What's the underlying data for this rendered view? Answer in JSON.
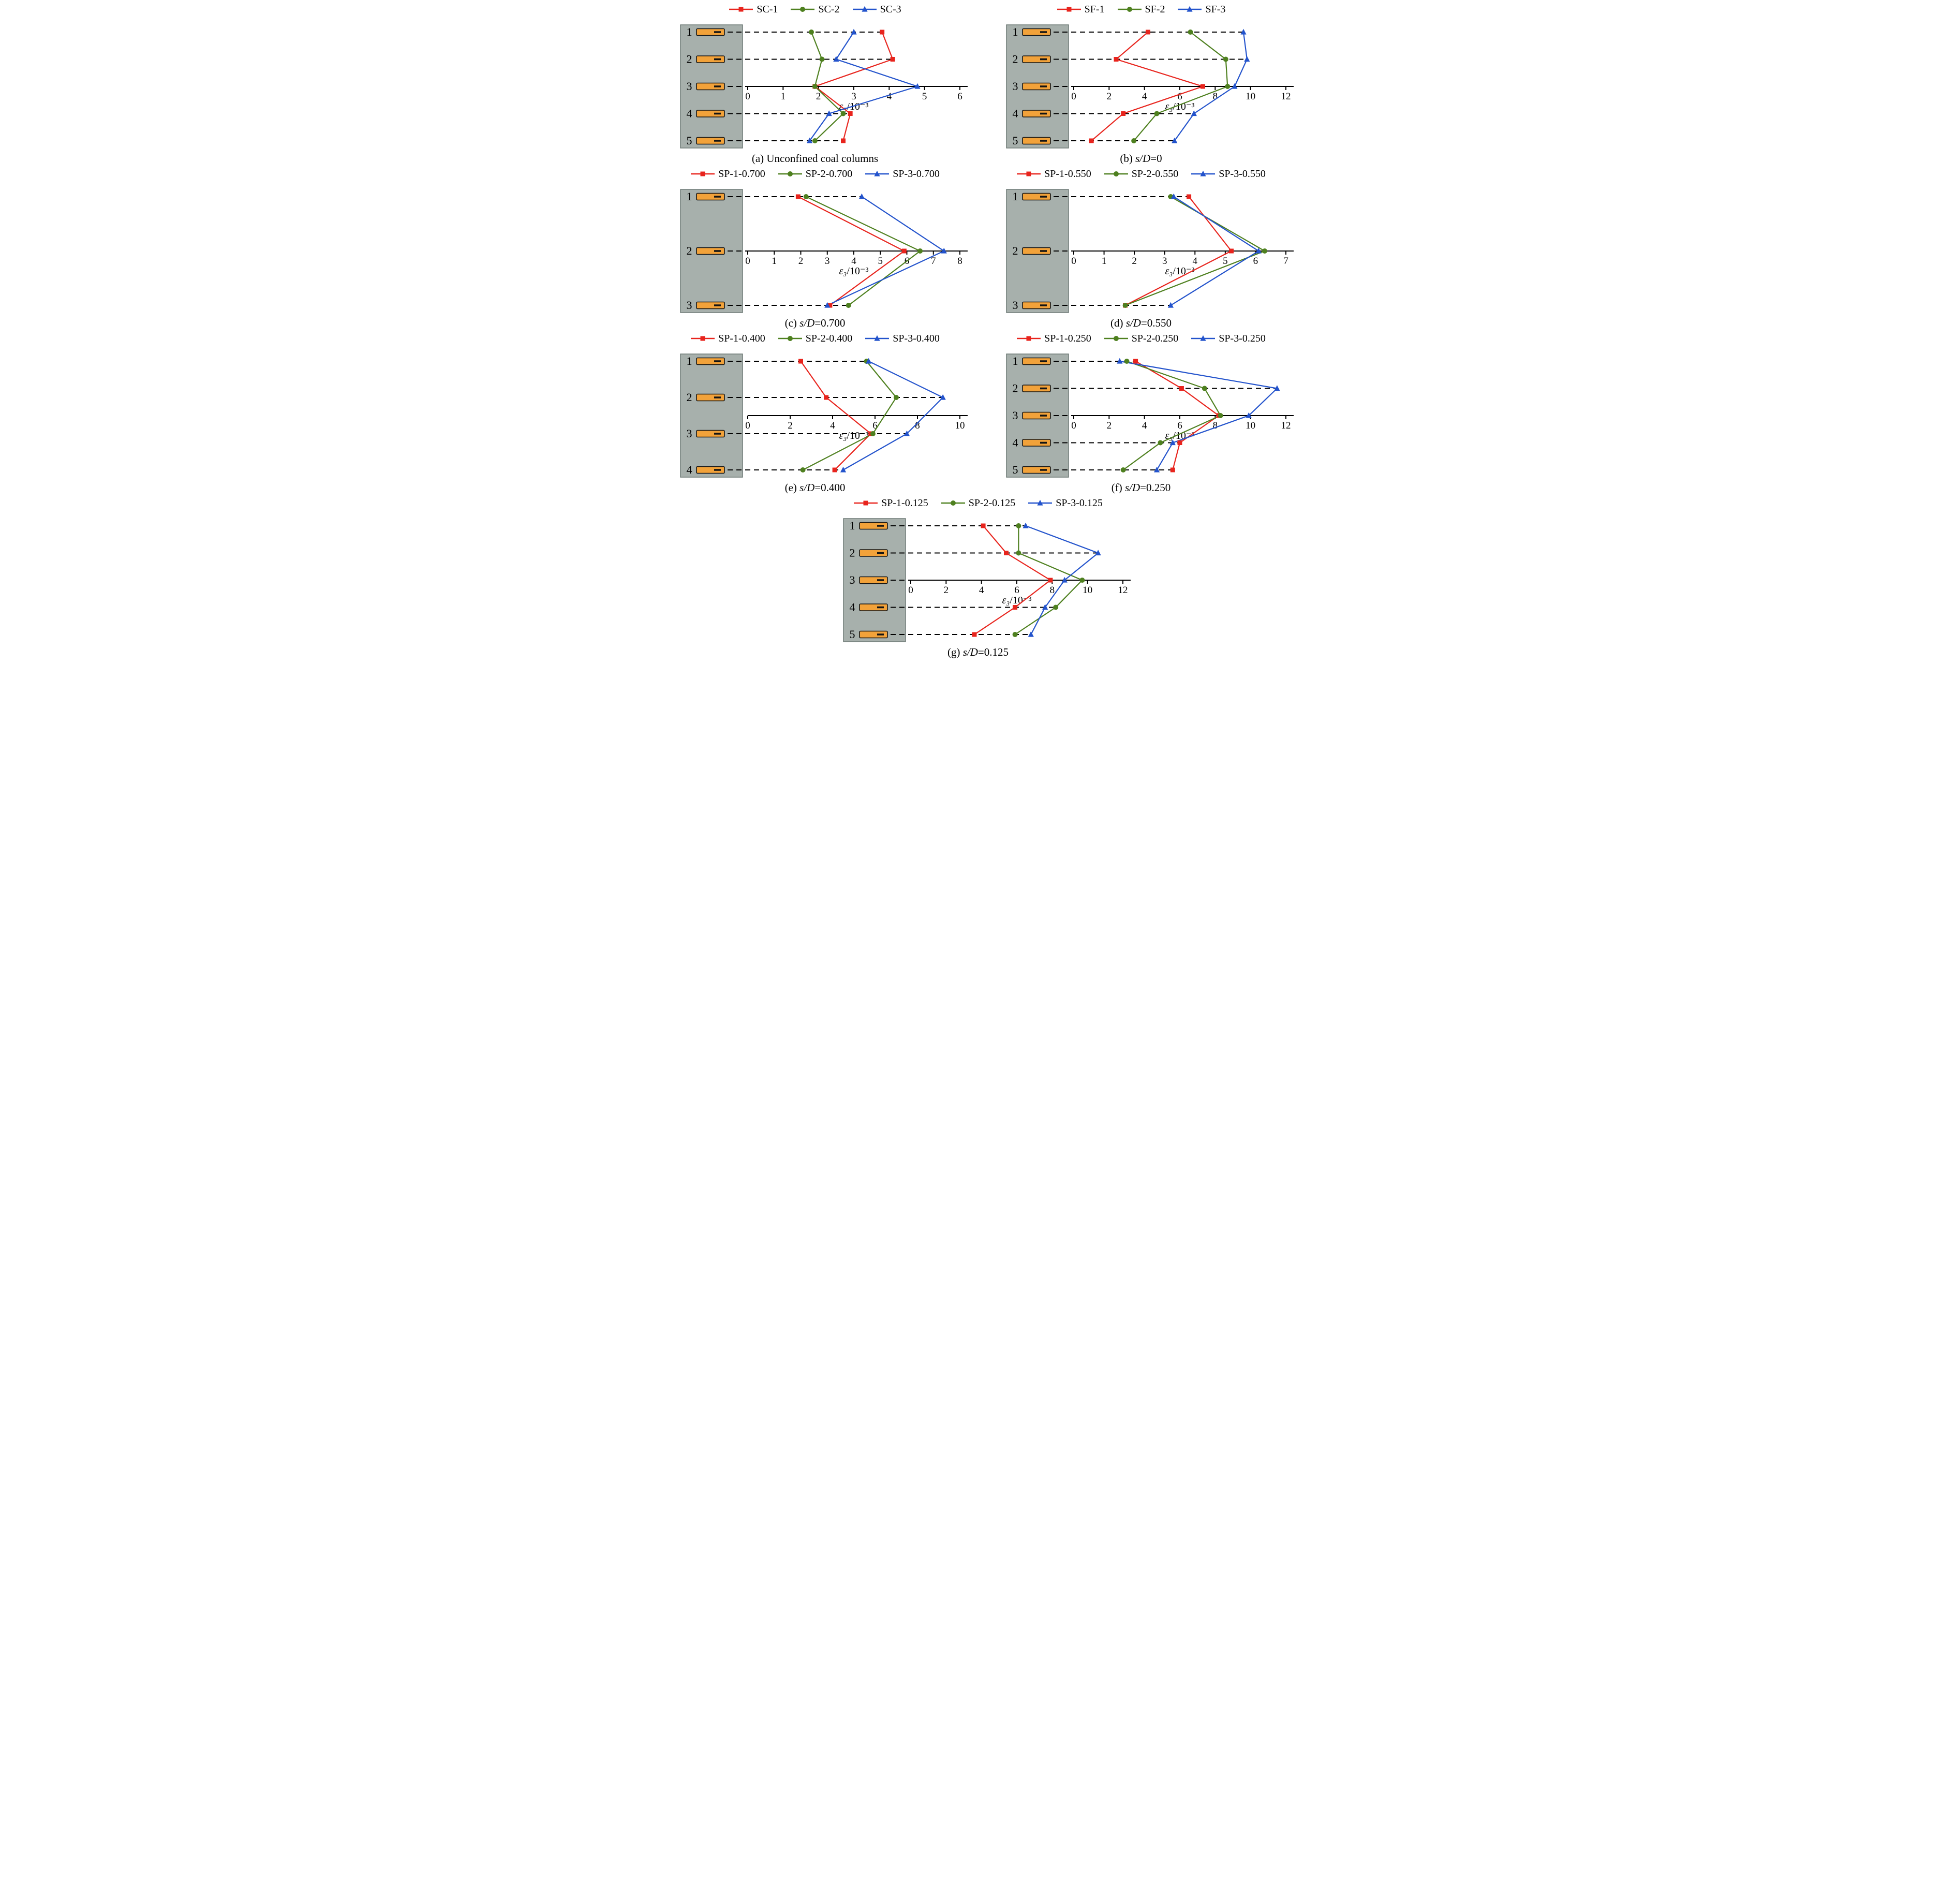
{
  "figure": {
    "colors": {
      "column_fill": "#a7b0ac",
      "column_stroke": "#6f7a76",
      "gauge_fill": "#f2a23a",
      "gauge_stroke": "#141414",
      "axis": "#000000",
      "red": "#e8241d",
      "green": "#4e801f",
      "blue": "#2353cc"
    }
  },
  "chart_data": [
    {
      "id": "a",
      "type": "line",
      "caption_parts": [
        {
          "text": "(a) Unconfined coal columns",
          "italic": false
        }
      ],
      "xlabel": "ε₃/10⁻³",
      "xlim": [
        0,
        6
      ],
      "xticks": [
        0,
        1,
        2,
        3,
        4,
        5,
        6
      ],
      "axis_level": 3,
      "categories": [
        "1",
        "2",
        "3",
        "4",
        "5"
      ],
      "series": [
        {
          "name": "SC-1",
          "marker": "square",
          "color": "#e8241d",
          "values": [
            3.8,
            4.1,
            1.9,
            2.9,
            2.7
          ]
        },
        {
          "name": "SC-2",
          "marker": "circle",
          "color": "#4e801f",
          "values": [
            1.8,
            2.1,
            1.9,
            2.7,
            1.9
          ]
        },
        {
          "name": "SC-3",
          "marker": "triangle",
          "color": "#2353cc",
          "values": [
            3.0,
            2.5,
            4.8,
            2.3,
            1.75
          ]
        }
      ]
    },
    {
      "id": "b",
      "type": "line",
      "caption_parts": [
        {
          "text": "(b) ",
          "italic": false
        },
        {
          "text": "s/D",
          "italic": true
        },
        {
          "text": "=0",
          "italic": false
        }
      ],
      "xlabel": "ε₃/10⁻³",
      "xlim": [
        0,
        12
      ],
      "xticks": [
        0,
        2,
        4,
        6,
        8,
        10,
        12
      ],
      "axis_level": 3,
      "categories": [
        "1",
        "2",
        "3",
        "4",
        "5"
      ],
      "series": [
        {
          "name": "SF-1",
          "marker": "square",
          "color": "#e8241d",
          "values": [
            4.2,
            2.4,
            7.3,
            2.8,
            1.0
          ]
        },
        {
          "name": "SF-2",
          "marker": "circle",
          "color": "#4e801f",
          "values": [
            6.6,
            8.6,
            8.7,
            4.7,
            3.4
          ]
        },
        {
          "name": "SF-3",
          "marker": "triangle",
          "color": "#2353cc",
          "values": [
            9.6,
            9.8,
            9.1,
            6.8,
            5.7
          ]
        }
      ]
    },
    {
      "id": "c",
      "type": "line",
      "caption_parts": [
        {
          "text": "(c) ",
          "italic": false
        },
        {
          "text": "s/D",
          "italic": true
        },
        {
          "text": "=0.700",
          "italic": false
        }
      ],
      "xlabel": "ε₃/10⁻³",
      "xlim": [
        0,
        8
      ],
      "xticks": [
        0,
        1,
        2,
        3,
        4,
        5,
        6,
        7,
        8
      ],
      "axis_level": 2,
      "categories": [
        "1",
        "2",
        "3"
      ],
      "series": [
        {
          "name": "SP-1-0.700",
          "marker": "square",
          "color": "#e8241d",
          "values": [
            1.9,
            5.9,
            3.1
          ]
        },
        {
          "name": "SP-2-0.700",
          "marker": "circle",
          "color": "#4e801f",
          "values": [
            2.2,
            6.5,
            3.8
          ]
        },
        {
          "name": "SP-3-0.700",
          "marker": "triangle",
          "color": "#2353cc",
          "values": [
            4.3,
            7.4,
            3.0
          ]
        }
      ]
    },
    {
      "id": "d",
      "type": "line",
      "caption_parts": [
        {
          "text": "(d) ",
          "italic": false
        },
        {
          "text": "s/D",
          "italic": true
        },
        {
          "text": "=0.550",
          "italic": false
        }
      ],
      "xlabel": "ε₃/10⁻³",
      "xlim": [
        0,
        7
      ],
      "xticks": [
        0,
        1,
        2,
        3,
        4,
        5,
        6,
        7
      ],
      "axis_level": 2,
      "categories": [
        "1",
        "2",
        "3"
      ],
      "series": [
        {
          "name": "SP-1-0.550",
          "marker": "square",
          "color": "#e8241d",
          "values": [
            3.8,
            5.2,
            1.7
          ]
        },
        {
          "name": "SP-2-0.550",
          "marker": "circle",
          "color": "#4e801f",
          "values": [
            3.2,
            6.3,
            1.7
          ]
        },
        {
          "name": "SP-3-0.550",
          "marker": "triangle",
          "color": "#2353cc",
          "values": [
            3.3,
            6.1,
            3.2
          ]
        }
      ]
    },
    {
      "id": "e",
      "type": "line",
      "caption_parts": [
        {
          "text": "(e) ",
          "italic": false
        },
        {
          "text": "s/D",
          "italic": true
        },
        {
          "text": "=0.400",
          "italic": false
        }
      ],
      "xlabel": "ε₃/10⁻³",
      "xlim": [
        0,
        10
      ],
      "xticks": [
        0,
        2,
        4,
        6,
        8,
        10
      ],
      "axis_level": 2.5,
      "categories": [
        "1",
        "2",
        "3",
        "4"
      ],
      "series": [
        {
          "name": "SP-1-0.400",
          "marker": "square",
          "color": "#e8241d",
          "values": [
            2.5,
            3.7,
            5.8,
            4.1
          ]
        },
        {
          "name": "SP-2-0.400",
          "marker": "circle",
          "color": "#4e801f",
          "values": [
            5.6,
            7.0,
            5.9,
            2.6
          ]
        },
        {
          "name": "SP-3-0.400",
          "marker": "triangle",
          "color": "#2353cc",
          "values": [
            5.7,
            9.2,
            7.5,
            4.5
          ]
        }
      ]
    },
    {
      "id": "f",
      "type": "line",
      "caption_parts": [
        {
          "text": "(f) ",
          "italic": false
        },
        {
          "text": "s/D",
          "italic": true
        },
        {
          "text": "=0.250",
          "italic": false
        }
      ],
      "xlabel": "ε₃/10⁻³",
      "xlim": [
        0,
        12
      ],
      "xticks": [
        0,
        2,
        4,
        6,
        8,
        10,
        12
      ],
      "axis_level": 3,
      "categories": [
        "1",
        "2",
        "3",
        "4",
        "5"
      ],
      "series": [
        {
          "name": "SP-1-0.250",
          "marker": "square",
          "color": "#e8241d",
          "values": [
            3.5,
            6.1,
            8.2,
            6.0,
            5.6
          ]
        },
        {
          "name": "SP-2-0.250",
          "marker": "circle",
          "color": "#4e801f",
          "values": [
            3.0,
            7.4,
            8.3,
            4.9,
            2.8
          ]
        },
        {
          "name": "SP-3-0.250",
          "marker": "triangle",
          "color": "#2353cc",
          "values": [
            2.6,
            11.5,
            9.9,
            5.6,
            4.7
          ]
        }
      ]
    },
    {
      "id": "g",
      "type": "line",
      "caption_parts": [
        {
          "text": "(g) ",
          "italic": false
        },
        {
          "text": "s/D",
          "italic": true
        },
        {
          "text": "=0.125",
          "italic": false
        }
      ],
      "xlabel": "ε₃/10⁻³",
      "xlim": [
        0,
        12
      ],
      "xticks": [
        0,
        2,
        4,
        6,
        8,
        10,
        12
      ],
      "axis_level": 3,
      "categories": [
        "1",
        "2",
        "3",
        "4",
        "5"
      ],
      "series": [
        {
          "name": "SP-1-0.125",
          "marker": "square",
          "color": "#e8241d",
          "values": [
            4.1,
            5.4,
            7.9,
            5.9,
            3.6
          ]
        },
        {
          "name": "SP-2-0.125",
          "marker": "circle",
          "color": "#4e801f",
          "values": [
            6.1,
            6.1,
            9.7,
            8.2,
            5.9
          ]
        },
        {
          "name": "SP-3-0.125",
          "marker": "triangle",
          "color": "#2353cc",
          "values": [
            6.5,
            10.6,
            8.7,
            7.6,
            6.8
          ]
        }
      ]
    }
  ]
}
